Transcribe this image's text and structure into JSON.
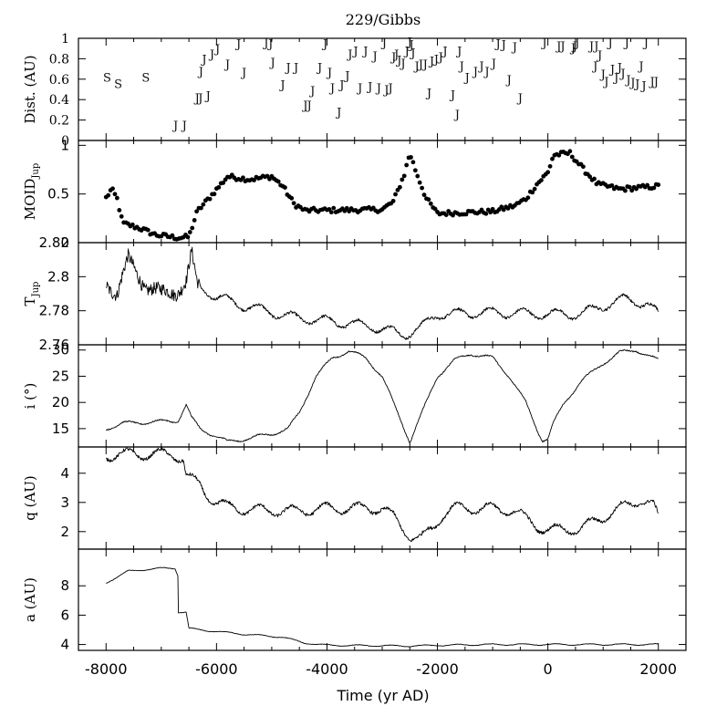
{
  "chart_data": {
    "title": "229/Gibbs",
    "xlabel": "Time (yr AD)",
    "xlim": [
      -8500,
      2500
    ],
    "xticks": [
      -8000,
      -6000,
      -4000,
      -2000,
      0,
      2000
    ],
    "xtick_labels": [
      "-8000",
      "-6000",
      "-4000",
      "-2000",
      "0",
      "2000"
    ],
    "panels": [
      {
        "type": "scatter-labels",
        "ylabel": "Dist. (AU)",
        "ylim": [
          0,
          1
        ],
        "yticks": [
          0,
          0.2,
          0.4,
          0.6,
          0.8,
          1
        ],
        "ytick_labels": [
          "0",
          "0.2",
          "0.4",
          "0.6",
          "0.8",
          "1"
        ],
        "encounters": [
          {
            "x": -7980,
            "y": 0.62,
            "label": "S"
          },
          {
            "x": -7780,
            "y": 0.56,
            "label": "S"
          },
          {
            "x": -7280,
            "y": 0.62,
            "label": "S"
          },
          {
            "x": -6740,
            "y": 0.15,
            "label": "J"
          },
          {
            "x": -6580,
            "y": 0.15,
            "label": "J"
          },
          {
            "x": -6350,
            "y": 0.42,
            "label": "J"
          },
          {
            "x": -6290,
            "y": 0.42,
            "label": "J"
          },
          {
            "x": -6150,
            "y": 0.44,
            "label": "J"
          },
          {
            "x": -6280,
            "y": 0.68,
            "label": "J"
          },
          {
            "x": -6220,
            "y": 0.8,
            "label": "J"
          },
          {
            "x": -6080,
            "y": 0.85,
            "label": "J"
          },
          {
            "x": -5980,
            "y": 0.9,
            "label": "J"
          },
          {
            "x": -5800,
            "y": 0.75,
            "label": "J"
          },
          {
            "x": -5600,
            "y": 0.95,
            "label": "J"
          },
          {
            "x": -5500,
            "y": 0.67,
            "label": "J"
          },
          {
            "x": -5100,
            "y": 0.96,
            "label": "J"
          },
          {
            "x": -5020,
            "y": 0.95,
            "label": "J"
          },
          {
            "x": -4980,
            "y": 0.77,
            "label": "J"
          },
          {
            "x": -4800,
            "y": 0.55,
            "label": "J"
          },
          {
            "x": -4700,
            "y": 0.72,
            "label": "J"
          },
          {
            "x": -4560,
            "y": 0.72,
            "label": "J"
          },
          {
            "x": -4390,
            "y": 0.35,
            "label": "J"
          },
          {
            "x": -4320,
            "y": 0.35,
            "label": "J"
          },
          {
            "x": -4260,
            "y": 0.49,
            "label": "J"
          },
          {
            "x": -4130,
            "y": 0.72,
            "label": "J"
          },
          {
            "x": -4030,
            "y": 0.95,
            "label": "J"
          },
          {
            "x": -3950,
            "y": 0.67,
            "label": "J"
          },
          {
            "x": -3900,
            "y": 0.52,
            "label": "J"
          },
          {
            "x": -3780,
            "y": 0.28,
            "label": "J"
          },
          {
            "x": -3730,
            "y": 0.55,
            "label": "J"
          },
          {
            "x": -3630,
            "y": 0.64,
            "label": "J"
          },
          {
            "x": -3580,
            "y": 0.85,
            "label": "J"
          },
          {
            "x": -3480,
            "y": 0.88,
            "label": "J"
          },
          {
            "x": -3400,
            "y": 0.52,
            "label": "J"
          },
          {
            "x": -3300,
            "y": 0.88,
            "label": "J"
          },
          {
            "x": -3220,
            "y": 0.53,
            "label": "J"
          },
          {
            "x": -3130,
            "y": 0.83,
            "label": "J"
          },
          {
            "x": -3060,
            "y": 0.52,
            "label": "J"
          },
          {
            "x": -2960,
            "y": 0.96,
            "label": "J"
          },
          {
            "x": -2920,
            "y": 0.5,
            "label": "J"
          },
          {
            "x": -2850,
            "y": 0.52,
            "label": "J"
          },
          {
            "x": -2790,
            "y": 0.82,
            "label": "J"
          },
          {
            "x": -2740,
            "y": 0.85,
            "label": "J"
          },
          {
            "x": -2690,
            "y": 0.79,
            "label": "J"
          },
          {
            "x": -2620,
            "y": 0.76,
            "label": "J"
          },
          {
            "x": -2550,
            "y": 0.88,
            "label": "J"
          },
          {
            "x": -2500,
            "y": 0.97,
            "label": "J"
          },
          {
            "x": -2470,
            "y": 0.94,
            "label": "J"
          },
          {
            "x": -2440,
            "y": 0.86,
            "label": "J"
          },
          {
            "x": -2370,
            "y": 0.73,
            "label": "J"
          },
          {
            "x": -2300,
            "y": 0.75,
            "label": "J"
          },
          {
            "x": -2220,
            "y": 0.75,
            "label": "J"
          },
          {
            "x": -2150,
            "y": 0.47,
            "label": "J"
          },
          {
            "x": -2100,
            "y": 0.78,
            "label": "J"
          },
          {
            "x": -2020,
            "y": 0.8,
            "label": "J"
          },
          {
            "x": -1940,
            "y": 0.82,
            "label": "J"
          },
          {
            "x": -1860,
            "y": 0.88,
            "label": "J"
          },
          {
            "x": -1720,
            "y": 0.45,
            "label": "J"
          },
          {
            "x": -1640,
            "y": 0.26,
            "label": "J"
          },
          {
            "x": -1600,
            "y": 0.88,
            "label": "J"
          },
          {
            "x": -1560,
            "y": 0.73,
            "label": "J"
          },
          {
            "x": -1460,
            "y": 0.62,
            "label": "J"
          },
          {
            "x": -1310,
            "y": 0.68,
            "label": "J"
          },
          {
            "x": -1200,
            "y": 0.73,
            "label": "J"
          },
          {
            "x": -1100,
            "y": 0.68,
            "label": "J"
          },
          {
            "x": -980,
            "y": 0.76,
            "label": "J"
          },
          {
            "x": -900,
            "y": 0.95,
            "label": "J"
          },
          {
            "x": -800,
            "y": 0.94,
            "label": "J"
          },
          {
            "x": -700,
            "y": 0.6,
            "label": "J"
          },
          {
            "x": -600,
            "y": 0.92,
            "label": "J"
          },
          {
            "x": -500,
            "y": 0.42,
            "label": "J"
          },
          {
            "x": -60,
            "y": 0.96,
            "label": "J"
          },
          {
            "x": 200,
            "y": 0.93,
            "label": "J"
          },
          {
            "x": 270,
            "y": 0.93,
            "label": "J"
          },
          {
            "x": 460,
            "y": 0.91,
            "label": "J"
          },
          {
            "x": 490,
            "y": 0.93,
            "label": "J"
          },
          {
            "x": 530,
            "y": 0.96,
            "label": "J"
          },
          {
            "x": 790,
            "y": 0.93,
            "label": "J"
          },
          {
            "x": 880,
            "y": 0.93,
            "label": "J"
          },
          {
            "x": 860,
            "y": 0.73,
            "label": "J"
          },
          {
            "x": 940,
            "y": 0.84,
            "label": "J"
          },
          {
            "x": 1000,
            "y": 0.65,
            "label": "J"
          },
          {
            "x": 1060,
            "y": 0.58,
            "label": "J"
          },
          {
            "x": 1130,
            "y": 0.96,
            "label": "J"
          },
          {
            "x": 1170,
            "y": 0.7,
            "label": "J"
          },
          {
            "x": 1240,
            "y": 0.62,
            "label": "J"
          },
          {
            "x": 1300,
            "y": 0.72,
            "label": "J"
          },
          {
            "x": 1360,
            "y": 0.66,
            "label": "J"
          },
          {
            "x": 1430,
            "y": 0.96,
            "label": "J"
          },
          {
            "x": 1460,
            "y": 0.6,
            "label": "J"
          },
          {
            "x": 1540,
            "y": 0.57,
            "label": "J"
          },
          {
            "x": 1620,
            "y": 0.56,
            "label": "J"
          },
          {
            "x": 1690,
            "y": 0.73,
            "label": "J"
          },
          {
            "x": 1740,
            "y": 0.54,
            "label": "J"
          },
          {
            "x": 1780,
            "y": 0.96,
            "label": "J"
          },
          {
            "x": 1890,
            "y": 0.58,
            "label": "J"
          },
          {
            "x": 1960,
            "y": 0.58,
            "label": "J"
          }
        ]
      },
      {
        "type": "scatter",
        "ylabel": "MOID",
        "ylabel_sub": "Jup",
        "ylim": [
          0,
          1.05
        ],
        "yticks": [
          0,
          0.5,
          1
        ],
        "ytick_labels": [
          "0",
          "0.5",
          "1"
        ]
      },
      {
        "type": "line",
        "ylabel": "T",
        "ylabel_sub": "Jup",
        "ylim": [
          2.76,
          2.82
        ],
        "yticks": [
          2.76,
          2.78,
          2.8,
          2.82
        ],
        "ytick_labels": [
          "2.76",
          "2.78",
          "2.8",
          "2.82"
        ]
      },
      {
        "type": "line",
        "ylabel": "i (°)",
        "ylim": [
          11.5,
          31
        ],
        "yticks": [
          15,
          20,
          25,
          30
        ],
        "ytick_labels": [
          "15",
          "20",
          "25",
          "30"
        ]
      },
      {
        "type": "line",
        "ylabel": "q (AU)",
        "ylim": [
          1.4,
          4.9
        ],
        "yticks": [
          2,
          3,
          4
        ],
        "ytick_labels": [
          "2",
          "3",
          "4"
        ]
      },
      {
        "type": "line",
        "ylabel": "a (AU)",
        "ylim": [
          3.6,
          10.5
        ],
        "yticks": [
          4,
          6,
          8
        ],
        "ytick_labels": [
          "4",
          "6",
          "8"
        ]
      }
    ]
  }
}
